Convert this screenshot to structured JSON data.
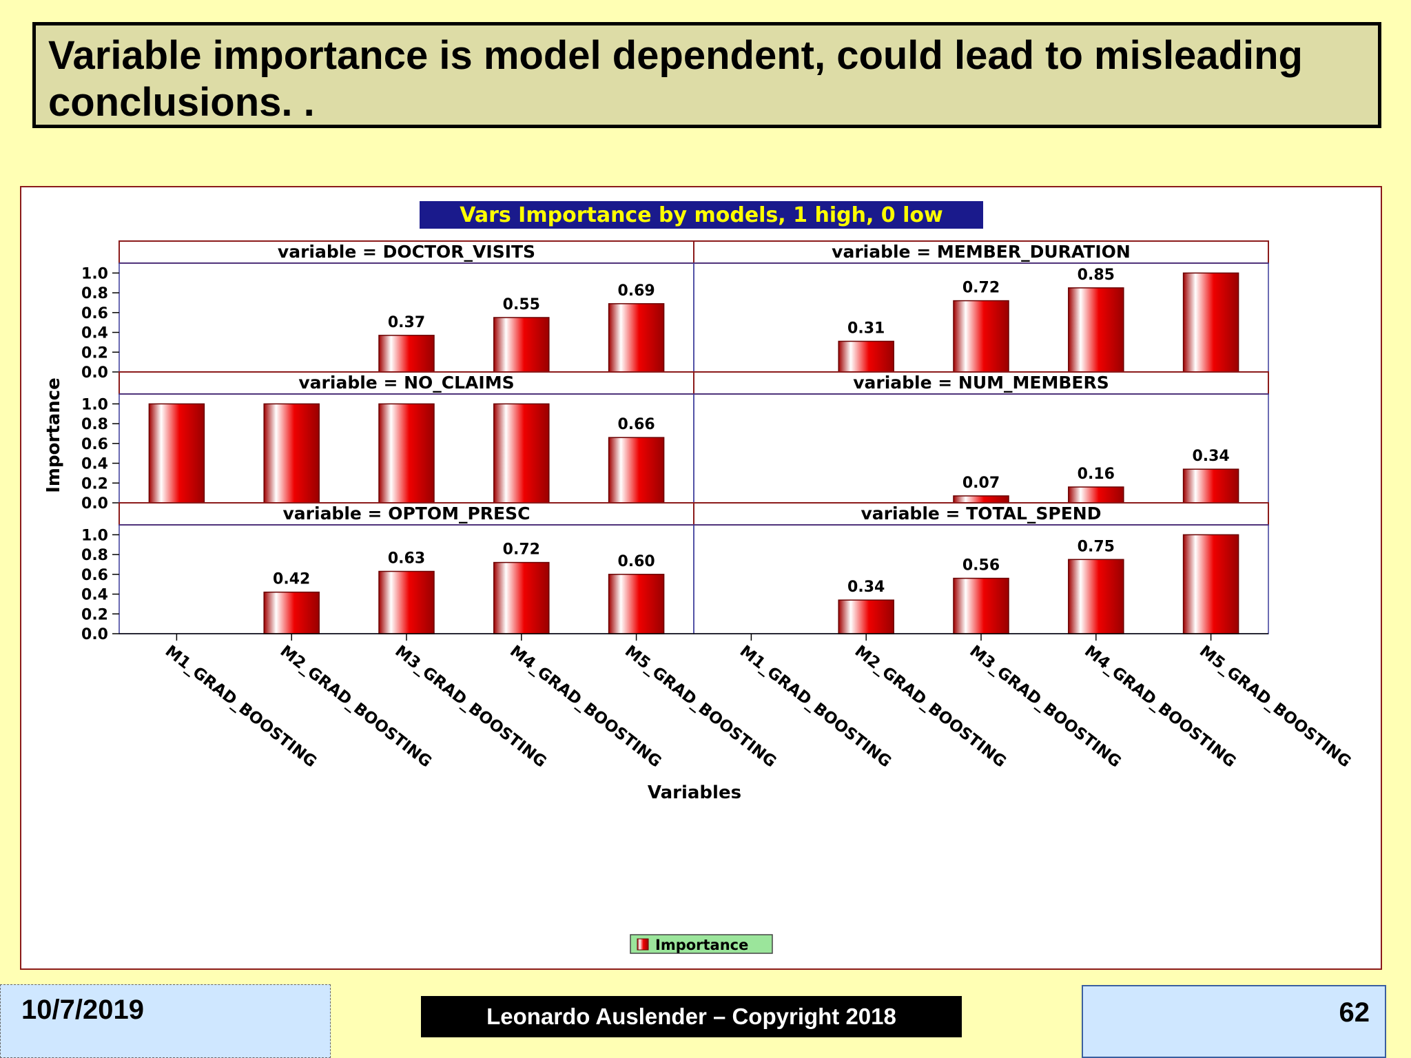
{
  "slide": {
    "title": "Variable importance is model dependent, could lead to misleading conclusions. .",
    "footer_date": "10/7/2019",
    "footer_copyright": "Leonardo Auslender – Copyright 2018",
    "page_number": "62"
  },
  "colors": {
    "background": "#ffffb4",
    "title_box": "#dddca6",
    "bar": "#ee0000",
    "chart_title_bg": "#1a1a8c",
    "chart_title_text": "#ffff00",
    "legend_bg": "#9be59b"
  },
  "chart_data": {
    "type": "bar",
    "title": "Vars Importance by models, 1 high, 0 low",
    "xlabel": "Variables",
    "ylabel": "Importance",
    "ylim": [
      0,
      1.1
    ],
    "yticks": [
      "1.0",
      "0.8",
      "0.6",
      "0.4",
      "0.2",
      "0.0"
    ],
    "categories": [
      "M1_GRAD_BOOSTING",
      "M2_GRAD_BOOSTING",
      "M3_GRAD_BOOSTING",
      "M4_GRAD_BOOSTING",
      "M5_GRAD_BOOSTING"
    ],
    "legend": {
      "entries": [
        "Importance"
      ],
      "position": "bottom-center"
    },
    "panels": [
      {
        "label": "variable = DOCTOR_VISITS",
        "values": [
          0,
          0,
          0.37,
          0.55,
          0.69
        ],
        "labels": [
          "",
          "",
          "0.37",
          "0.55",
          "0.69"
        ]
      },
      {
        "label": "variable = MEMBER_DURATION",
        "values": [
          0,
          0.31,
          0.72,
          0.85,
          1.0
        ],
        "labels": [
          "",
          "0.31",
          "0.72",
          "0.85",
          ""
        ]
      },
      {
        "label": "variable = NO_CLAIMS",
        "values": [
          1.0,
          1.0,
          1.0,
          1.0,
          0.66
        ],
        "labels": [
          "",
          "",
          "",
          "",
          "0.66"
        ]
      },
      {
        "label": "variable = NUM_MEMBERS",
        "values": [
          0,
          0,
          0.07,
          0.16,
          0.34
        ],
        "labels": [
          "",
          "",
          "0.07",
          "0.16",
          "0.34"
        ]
      },
      {
        "label": "variable = OPTOM_PRESC",
        "values": [
          0,
          0.42,
          0.63,
          0.72,
          0.6
        ],
        "labels": [
          "",
          "0.42",
          "0.63",
          "0.72",
          "0.60"
        ]
      },
      {
        "label": "variable = TOTAL_SPEND",
        "values": [
          0,
          0.34,
          0.56,
          0.75,
          1.0
        ],
        "labels": [
          "",
          "0.34",
          "0.56",
          "0.75",
          ""
        ]
      }
    ]
  }
}
